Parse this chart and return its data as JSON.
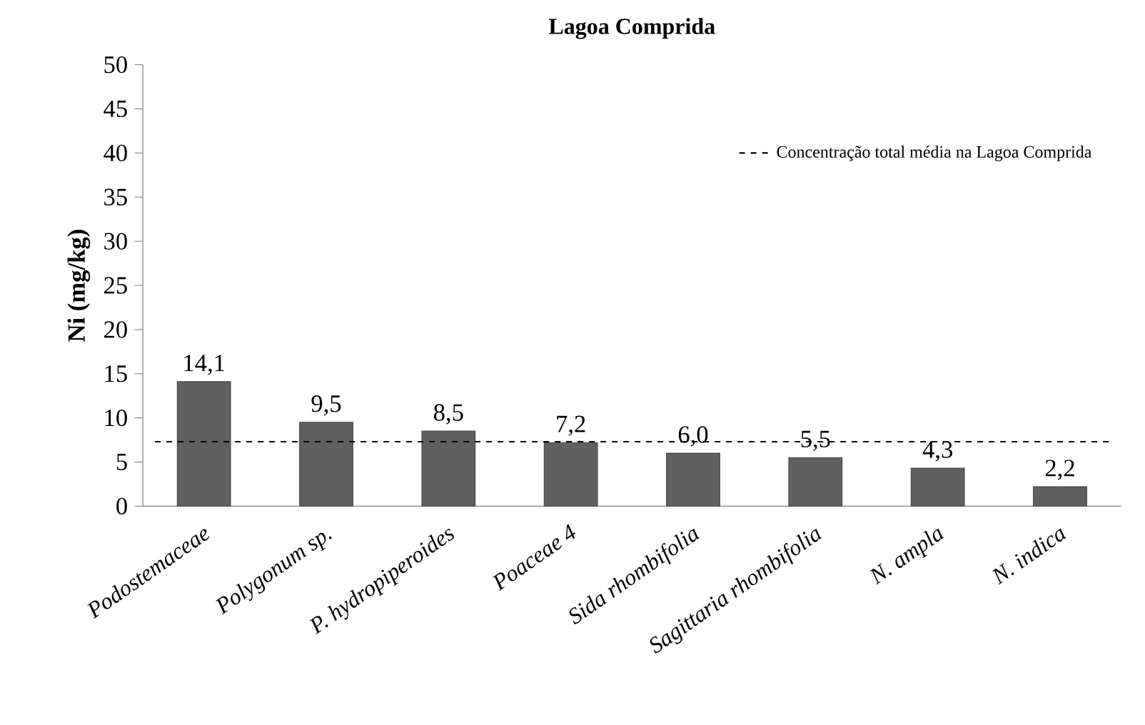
{
  "chart_data": {
    "type": "bar",
    "title": "Lagoa Comprida",
    "ylabel": "Ni (mg/kg)",
    "categories": [
      "Podostemaceae",
      "Polygonum sp.",
      "P. hydropiperoides",
      "Poaceae 4",
      "Sida rhombifolia",
      "Sagittaria rhombifolia",
      "N. ampla",
      "N. indica"
    ],
    "values": [
      14.1,
      9.5,
      8.5,
      7.2,
      6.0,
      5.5,
      4.3,
      2.2
    ],
    "value_labels": [
      "14,1",
      "9,5",
      "8,5",
      "7,2",
      "6,0",
      "5,5",
      "4,3",
      "2,2"
    ],
    "color": "#606060",
    "ylim": [
      0,
      50
    ],
    "yticks": [
      0,
      5,
      10,
      15,
      20,
      25,
      30,
      35,
      40,
      45,
      50
    ],
    "ref_lines": [
      {
        "axis": "y",
        "value": 7.3,
        "label": "Concentração total média na Lagoa Comprida",
        "color": "#000000",
        "line_style": "dashed"
      }
    ],
    "legend": "top right",
    "grid": false
  }
}
